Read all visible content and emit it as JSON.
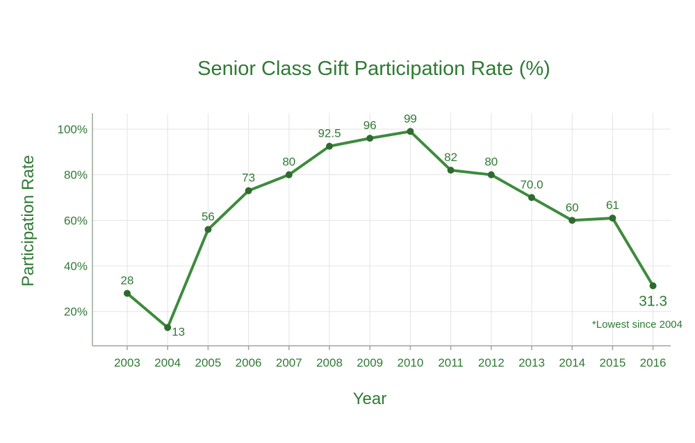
{
  "chart_data": {
    "type": "line",
    "title": "Senior Class Gift Participation Rate (%)",
    "xlabel": "Year",
    "ylabel": "Participation Rate",
    "x": [
      "2003",
      "2004",
      "2005",
      "2006",
      "2007",
      "2008",
      "2009",
      "2010",
      "2011",
      "2012",
      "2013",
      "2014",
      "2015",
      "2016"
    ],
    "series": [
      {
        "values": [
          28,
          13,
          56,
          73,
          80,
          92.5,
          96,
          99,
          82,
          80,
          70.0,
          60,
          61,
          31.3
        ],
        "labels": [
          "28",
          "13",
          "56",
          "73",
          "80",
          "92.5",
          "96",
          "99",
          "82",
          "80",
          "70.0",
          "60",
          "61",
          "31.3"
        ]
      }
    ],
    "yticks": [
      "20%",
      "40%",
      "60%",
      "80%",
      "100%"
    ],
    "ytick_values": [
      20,
      40,
      60,
      80,
      100
    ],
    "ylim": [
      5,
      107
    ],
    "grid": true,
    "line_color": "#3d8b3d",
    "annotation": "*Lowest since 2004"
  }
}
